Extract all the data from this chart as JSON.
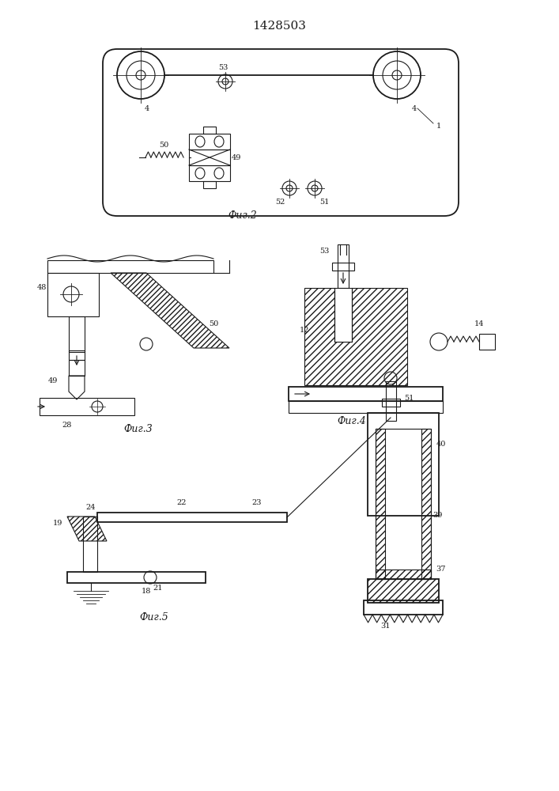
{
  "title": "1428503",
  "bg_color": "#ffffff",
  "line_color": "#1a1a1a",
  "fig2_label": "Фиг.2",
  "fig3_label": "Фиг.3",
  "fig4_label": "Фиг.4",
  "fig5_label": "Фиг.5"
}
